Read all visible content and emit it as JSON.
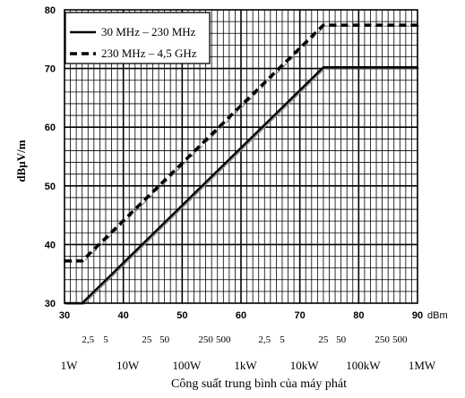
{
  "chart_data": {
    "type": "line",
    "title": "",
    "ylabel": "dBµV/m",
    "xlabel": "Công suất trung bình của máy phát",
    "x_unit": "dBm",
    "xlim": [
      30,
      90
    ],
    "ylim": [
      30,
      80
    ],
    "x_ticks": [
      "30",
      "40",
      "50",
      "60",
      "70",
      "80",
      "90"
    ],
    "y_ticks": [
      "30",
      "40",
      "50",
      "60",
      "70",
      "80"
    ],
    "grid": true,
    "legend_position": "top-left",
    "series": [
      {
        "name": "30 MHz – 230 MHz",
        "style": "solid",
        "color": "#000000",
        "x": [
          30,
          33,
          74,
          90
        ],
        "y": [
          30,
          30,
          70.2,
          70.2
        ]
      },
      {
        "name": "230 MHz – 4,5 GHz",
        "style": "dashed",
        "color": "#000000",
        "x": [
          30,
          33,
          74,
          90
        ],
        "y": [
          37.2,
          37.2,
          77.4,
          77.4
        ]
      }
    ],
    "secondary_x_labels": [
      {
        "x": 34,
        "text": "2,5"
      },
      {
        "x": 37,
        "text": "5"
      },
      {
        "x": 44,
        "text": "25"
      },
      {
        "x": 47,
        "text": "50"
      },
      {
        "x": 54,
        "text": "250"
      },
      {
        "x": 57,
        "text": "500"
      },
      {
        "x": 64,
        "text": "2,5"
      },
      {
        "x": 67,
        "text": "5"
      },
      {
        "x": 74,
        "text": "25"
      },
      {
        "x": 77,
        "text": "50"
      },
      {
        "x": 84,
        "text": "250"
      },
      {
        "x": 87,
        "text": "500"
      }
    ],
    "power_labels": [
      {
        "x": 30,
        "text": "1W"
      },
      {
        "x": 40,
        "text": "10W"
      },
      {
        "x": 50,
        "text": "100W"
      },
      {
        "x": 60,
        "text": "1kW"
      },
      {
        "x": 70,
        "text": "10kW"
      },
      {
        "x": 80,
        "text": "100kW"
      },
      {
        "x": 90,
        "text": "1MW"
      }
    ]
  }
}
